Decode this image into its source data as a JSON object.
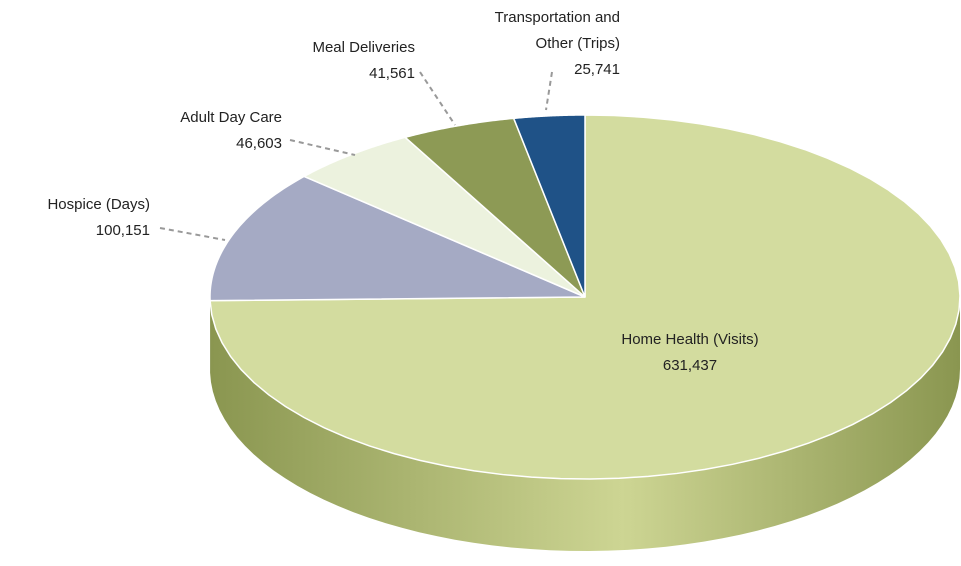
{
  "chart_data": {
    "type": "pie",
    "categories": [
      "Home Health (Visits)",
      "Hospice (Days)",
      "Adult Day Care",
      "Meal Deliveries",
      "Transportation and Other (Trips)"
    ],
    "values": [
      631437,
      100151,
      46603,
      41561,
      25741
    ],
    "value_labels": [
      "631,437",
      "100,151",
      "46,603",
      "41,561",
      "25,741"
    ],
    "colors": [
      "#d3dc9f",
      "#a5aac4",
      "#ecf2de",
      "#8d9a55",
      "#1f5287"
    ]
  }
}
